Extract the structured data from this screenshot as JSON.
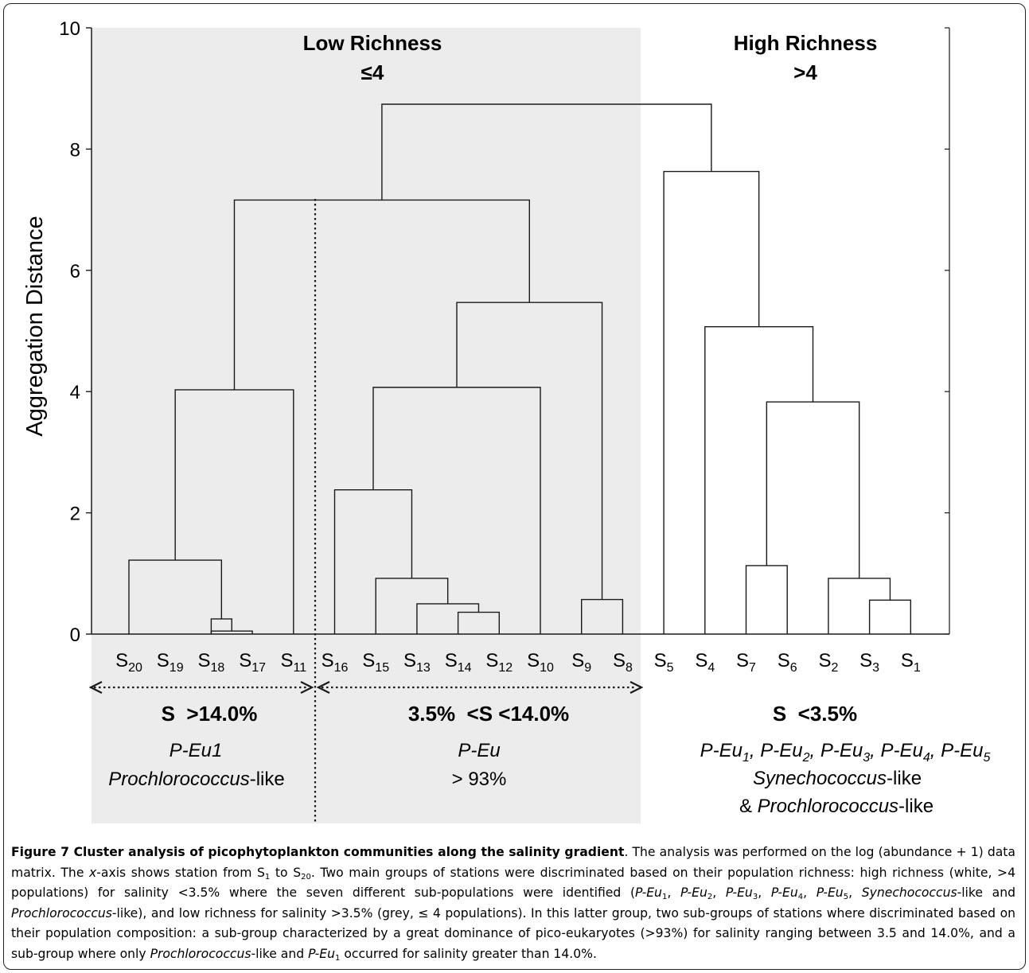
{
  "chart_data": {
    "type": "dendrogram",
    "ylabel": "Aggregation Distance",
    "ylim": [
      0,
      10
    ],
    "yticks": [
      "0",
      "2",
      "4",
      "6",
      "8",
      "10"
    ],
    "leaves": [
      {
        "base": "S",
        "sub": "20"
      },
      {
        "base": "S",
        "sub": "19"
      },
      {
        "base": "S",
        "sub": "18"
      },
      {
        "base": "S",
        "sub": "17"
      },
      {
        "base": "S",
        "sub": "11"
      },
      {
        "base": "S",
        "sub": "16"
      },
      {
        "base": "S",
        "sub": "15"
      },
      {
        "base": "S",
        "sub": "13"
      },
      {
        "base": "S",
        "sub": "14"
      },
      {
        "base": "S",
        "sub": "12"
      },
      {
        "base": "S",
        "sub": "10"
      },
      {
        "base": "S",
        "sub": "9"
      },
      {
        "base": "S",
        "sub": "8"
      },
      {
        "base": "S",
        "sub": "5"
      },
      {
        "base": "S",
        "sub": "4"
      },
      {
        "base": "S",
        "sub": "7"
      },
      {
        "base": "S",
        "sub": "6"
      },
      {
        "base": "S",
        "sub": "2"
      },
      {
        "base": "S",
        "sub": "3"
      },
      {
        "base": "S",
        "sub": "1"
      }
    ],
    "merges": [
      {
        "a": "L3",
        "b": "L2",
        "height": 0.05
      },
      {
        "a": "L2",
        "b": "m0",
        "height": 0.25
      },
      {
        "a": "L0",
        "b": "m1",
        "height": 1.22
      },
      {
        "a": "m2",
        "b": "L4",
        "height": 4.03
      },
      {
        "a": "L8",
        "b": "L9",
        "height": 0.36
      },
      {
        "a": "L7",
        "b": "m4",
        "height": 0.5
      },
      {
        "a": "L6",
        "b": "m5",
        "height": 0.92
      },
      {
        "a": "L5",
        "b": "m6",
        "height": 2.38
      },
      {
        "a": "m7",
        "b": "L10",
        "height": 4.07
      },
      {
        "a": "L11",
        "b": "L12",
        "height": 0.57
      },
      {
        "a": "m8",
        "b": "m9",
        "height": 5.47
      },
      {
        "a": "m3",
        "b": "m10",
        "height": 7.16
      },
      {
        "a": "L18",
        "b": "L19",
        "height": 0.56
      },
      {
        "a": "L17",
        "b": "m12",
        "height": 0.92
      },
      {
        "a": "L15",
        "b": "L16",
        "height": 1.13
      },
      {
        "a": "m14",
        "b": "m13",
        "height": 3.83
      },
      {
        "a": "L14",
        "b": "m15",
        "height": 5.07
      },
      {
        "a": "L13",
        "b": "m16",
        "height": 7.63
      },
      {
        "a": "m11",
        "b": "m17",
        "height": 8.74
      }
    ],
    "groups": [
      {
        "title": "Low Richness",
        "subtitle": "≤4",
        "shaded": true
      },
      {
        "title": "High Richness",
        "subtitle": ">4",
        "shaded": false
      }
    ],
    "salinity_ranges": [
      {
        "label": "S  >14.0%",
        "desc1": "P-Eu1",
        "desc2_italic": "Prochlorococcus",
        "desc2_rest": "-like"
      },
      {
        "label": "3.5%  <S <14.0%",
        "desc1": "P-Eu",
        "desc2": "> 93%"
      },
      {
        "label": "S  <3.5%",
        "desc2_italic": "Synechococcus",
        "desc2_rest": "-like",
        "desc3_pre": "& ",
        "desc3_italic": "Prochlorococcus",
        "desc3_rest": "-like"
      }
    ],
    "peu_list": [
      {
        "base": "P-Eu",
        "sub": "1"
      },
      {
        "base": "P-Eu",
        "sub": "2"
      },
      {
        "base": "P-Eu",
        "sub": "3"
      },
      {
        "base": "P-Eu",
        "sub": "4"
      },
      {
        "base": "P-Eu",
        "sub": "5"
      }
    ],
    "colors": {
      "shade": "#ececec",
      "line": "#1a1a1a"
    }
  },
  "caption": {
    "title": "Figure 7 Cluster analysis of picophytoplankton communities along the salinity gradient",
    "t1": ". The analysis was performed on the log (abundance + 1) data matrix. The ",
    "t2": "x",
    "t3": "-axis shows station from S",
    "t4": "1",
    "t5": " to S",
    "t6": "20",
    "t7": ". Two main groups of stations were discriminated based on their population richness: high richness (white, >4 populations) for salinity <3.5% where the seven different sub-populations were identified (",
    "t8": "P-Eu",
    "t9": "1",
    "t10": ", ",
    "t11": "P-Eu",
    "t12": "2",
    "t13": ", ",
    "t14": "P-Eu",
    "t15": "3",
    "t16": ", ",
    "t17": "P-Eu",
    "t18": "4",
    "t19": ", ",
    "t20": "P-Eu",
    "t21": "5",
    "t22": ", ",
    "t23": "Synechococcus",
    "t24": "-like and ",
    "t25": "Prochlorococcus",
    "t26": "-like), and low richness for salinity >3.5% (grey, ≤ 4 populations). In this latter group, two sub-groups of stations where discriminated based on their population composition: a sub-group characterized by a great dominance of pico-eukaryotes (>93%) for salinity ranging between 3.5 and 14.0%, and a sub-group where only ",
    "t27": "Prochlorococcus",
    "t28": "-like and ",
    "t29": "P-Eu",
    "t30": "1",
    "t31": " occurred for salinity greater than 14.0%."
  }
}
